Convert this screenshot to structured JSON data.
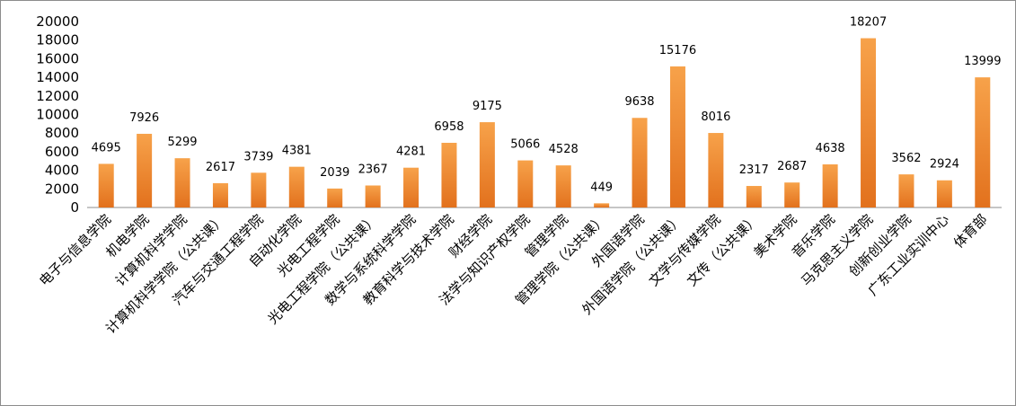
{
  "chart_data": {
    "type": "bar",
    "title": "",
    "xlabel": "",
    "ylabel": "",
    "ylim": [
      0,
      20000
    ],
    "y_ticks": [
      0,
      2000,
      4000,
      6000,
      8000,
      10000,
      12000,
      14000,
      16000,
      18000,
      20000
    ],
    "grid": false,
    "legend": "none",
    "bar_color_top": "#f7a24a",
    "bar_color_bottom": "#e2711d",
    "categories": [
      "电子与信息学院",
      "机电学院",
      "计算机科学学院",
      "计算机科学学院（公共课）",
      "汽车与交通工程学院",
      "自动化学院",
      "光电工程学院",
      "光电工程学院（公共课）",
      "数学与系统科学学院",
      "教育科学与技术学院",
      "财经学院",
      "法学与知识产权学院",
      "管理学院",
      "管理学院（公共课）",
      "外国语学院",
      "外国语学院（公共课）",
      "文学与传媒学院",
      "文传（公共课）",
      "美术学院",
      "音乐学院",
      "马克思主义学院",
      "创新创业学院",
      "广东工业实训中心",
      "体育部"
    ],
    "values": [
      4695,
      7926,
      5299,
      2617,
      3739,
      4381,
      2039,
      2367,
      4281,
      6958,
      9175,
      5066,
      4528,
      449,
      9638,
      15176,
      8016,
      2317,
      2687,
      4638,
      18207,
      3562,
      2924,
      13999
    ]
  }
}
